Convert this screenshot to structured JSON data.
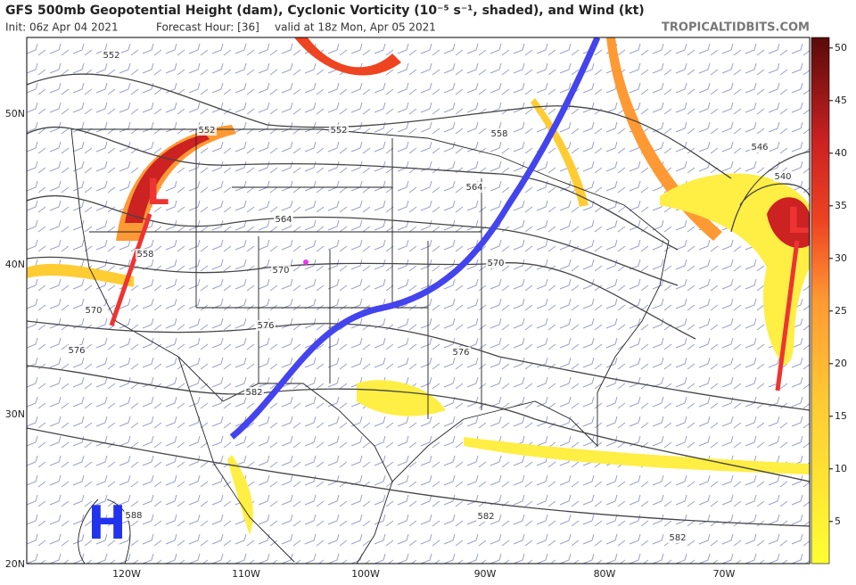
{
  "header": {
    "title": "GFS 500mb Geopotential Height (dam), Cyclonic Vorticity (10⁻⁵ s⁻¹, shaded), and Wind (kt)",
    "init": "Init: 06z Apr 04 2021",
    "forecast_hour": "Forecast Hour: [36]",
    "valid": "valid at 18z Mon, Apr 05 2021",
    "site": "TROPICALTIDBITS.COM"
  },
  "map": {
    "lat_labels": [
      "50N",
      "40N",
      "30N",
      "20N"
    ],
    "lon_labels": [
      "120W",
      "110W",
      "100W",
      "90W",
      "80W",
      "70W"
    ],
    "contour_labels": [
      552,
      552,
      552,
      558,
      564,
      564,
      558,
      570,
      570,
      570,
      576,
      576,
      576,
      582,
      582,
      582,
      588,
      546,
      540
    ],
    "lows": [
      "L",
      "L"
    ],
    "high": "H"
  },
  "colorbar": {
    "range": [
      1,
      51
    ],
    "ticks": [
      5,
      10,
      15,
      20,
      25,
      30,
      35,
      40,
      45,
      50
    ]
  }
}
